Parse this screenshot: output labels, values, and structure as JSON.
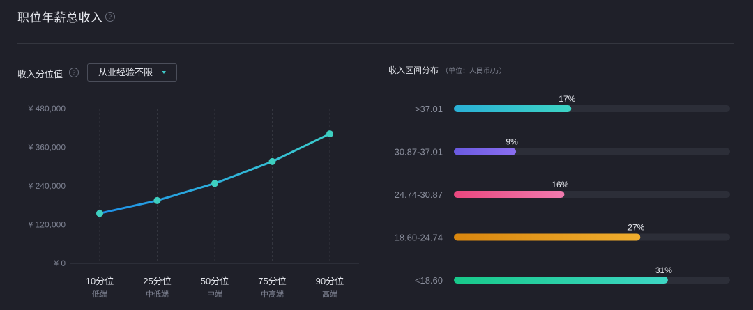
{
  "header": {
    "title": "职位年薪总收入",
    "help_glyph": "?"
  },
  "percentile": {
    "label": "收入分位值",
    "help_glyph": "?",
    "dropdown_value": "从业经验不限"
  },
  "distribution": {
    "title": "收入区间分布",
    "unit": "（单位：人民币/万）"
  },
  "chart_data": [
    {
      "type": "line",
      "x": [
        "10分位",
        "25分位",
        "50分位",
        "75分位",
        "90分位"
      ],
      "x_sublabels": [
        "低端",
        "中低端",
        "中端",
        "中高端",
        "高端"
      ],
      "values": [
        155000,
        195000,
        248000,
        316000,
        402000
      ],
      "ylim": [
        0,
        480000
      ],
      "y_ticks": [
        0,
        120000,
        240000,
        360000,
        480000
      ],
      "y_tick_labels": [
        "¥ 0",
        "¥ 120,000",
        "¥ 240,000",
        "¥ 360,000",
        "¥ 480,000"
      ],
      "grid": "vertical dashed",
      "colors": {
        "line_start": "#1e90e8",
        "line_end": "#3ccdcd",
        "point": "#3ecfc0"
      }
    },
    {
      "type": "bar",
      "orientation": "horizontal",
      "categories": [
        ">37.01",
        "30.87-37.01",
        "24.74-30.87",
        "18.60-24.74",
        "<18.60"
      ],
      "values": [
        17,
        9,
        16,
        27,
        31
      ],
      "value_labels": [
        "17%",
        "9%",
        "16%",
        "27%",
        "31%"
      ],
      "xlim": [
        0,
        40
      ],
      "colors": [
        [
          "#2ab0d6",
          "#3dd4c4"
        ],
        [
          "#6a5ae0",
          "#8a6ef0"
        ],
        [
          "#e9477e",
          "#f07aae"
        ],
        [
          "#d9860e",
          "#f0ae2e"
        ],
        [
          "#18c98a",
          "#3ed6c4"
        ]
      ],
      "track_color": "#2c2e38"
    }
  ]
}
